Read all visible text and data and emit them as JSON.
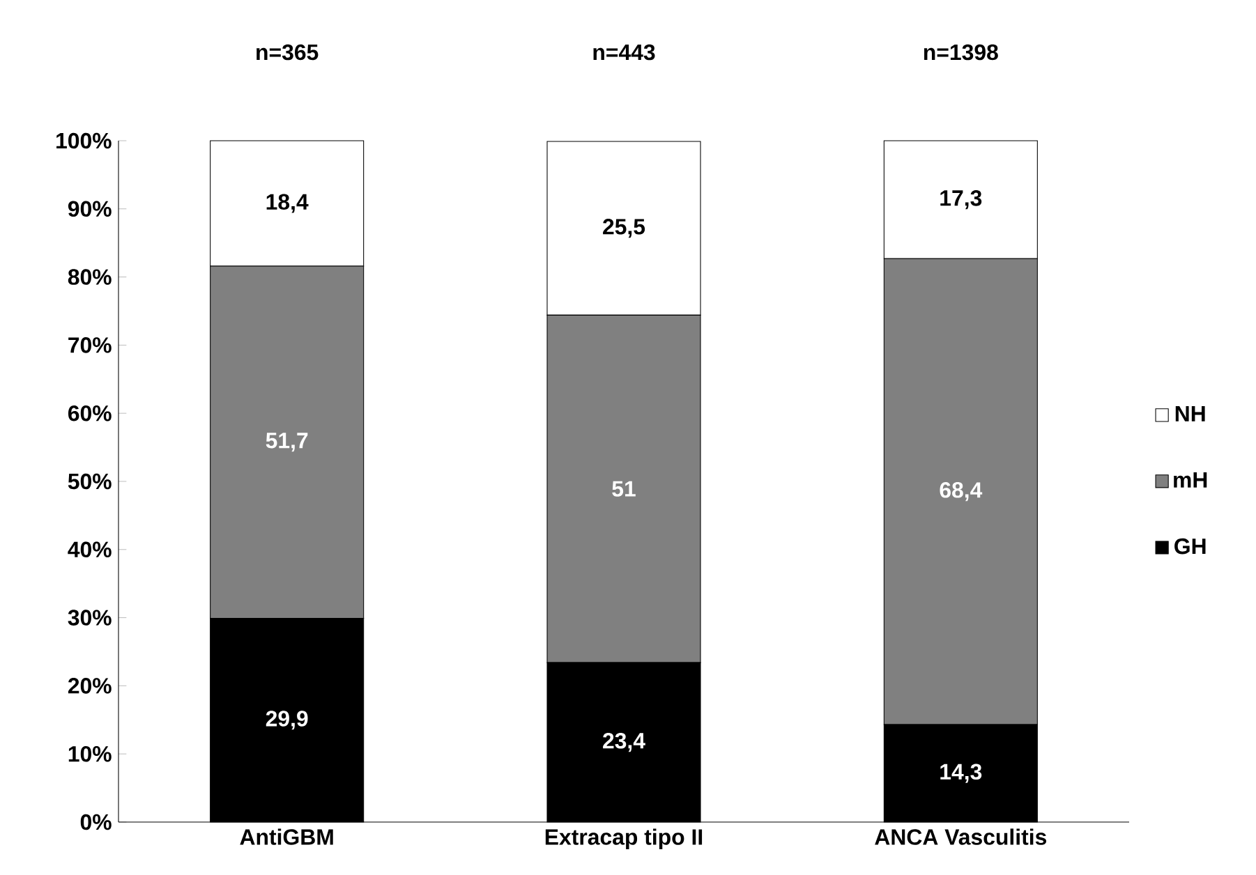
{
  "chart_data": {
    "type": "bar",
    "stacked": true,
    "categories": [
      "AntiGBM",
      "Extracap tipo II",
      "ANCA Vasculitis"
    ],
    "series": [
      {
        "name": "GH",
        "color": "#000000",
        "values": [
          29.9,
          23.4,
          14.3
        ],
        "value_labels": [
          "29,9",
          "23,4",
          "14,3"
        ]
      },
      {
        "name": "mH",
        "color": "#808080",
        "values": [
          51.7,
          51,
          68.4
        ],
        "value_labels": [
          "51,7",
          "51",
          "68,4"
        ]
      },
      {
        "name": "NH",
        "color": "#ffffff",
        "values": [
          18.4,
          25.5,
          17.3
        ],
        "value_labels": [
          "18,4",
          "25,5",
          "17,3"
        ]
      }
    ],
    "ylim": [
      0,
      100
    ],
    "yticks": [
      {
        "value": 0,
        "label": "0%"
      },
      {
        "value": 10,
        "label": "10%"
      },
      {
        "value": 20,
        "label": "20%"
      },
      {
        "value": 30,
        "label": "30%"
      },
      {
        "value": 40,
        "label": "40%"
      },
      {
        "value": 50,
        "label": "50%"
      },
      {
        "value": 60,
        "label": "60%"
      },
      {
        "value": 70,
        "label": "70%"
      },
      {
        "value": 80,
        "label": "80%"
      },
      {
        "value": 90,
        "label": "90%"
      },
      {
        "value": 100,
        "label": "100%"
      }
    ],
    "annotations": [
      "n=365",
      "n=443",
      "n=1398"
    ],
    "legend": "right",
    "grid": false
  }
}
